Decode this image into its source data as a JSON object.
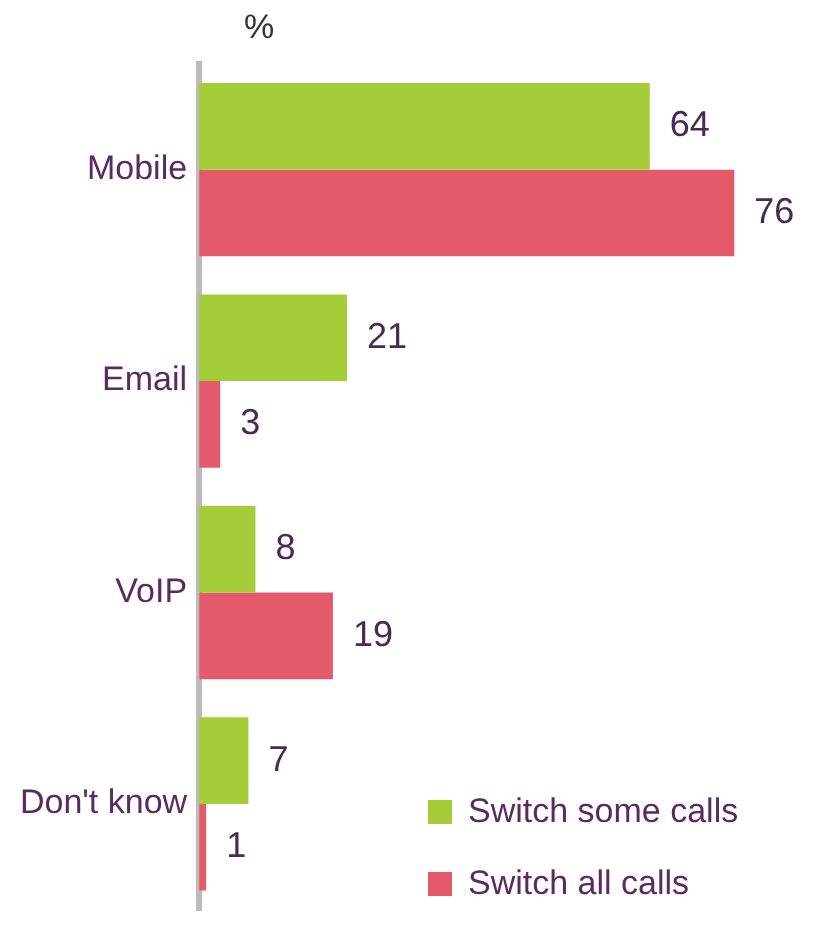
{
  "chart_data": {
    "type": "bar",
    "orientation": "horizontal",
    "annotations": [
      "%"
    ],
    "categories": [
      "Mobile",
      "Email",
      "VoIP",
      "Don't know"
    ],
    "series": [
      {
        "name": "Switch some calls",
        "color": "#a5cd39",
        "values": [
          64,
          21,
          8,
          7
        ]
      },
      {
        "name": "Switch all calls",
        "color": "#e35b6b",
        "values": [
          76,
          3,
          19,
          1
        ]
      }
    ],
    "data_labels": true,
    "legend": "bottom right",
    "tick_labels": "y"
  }
}
